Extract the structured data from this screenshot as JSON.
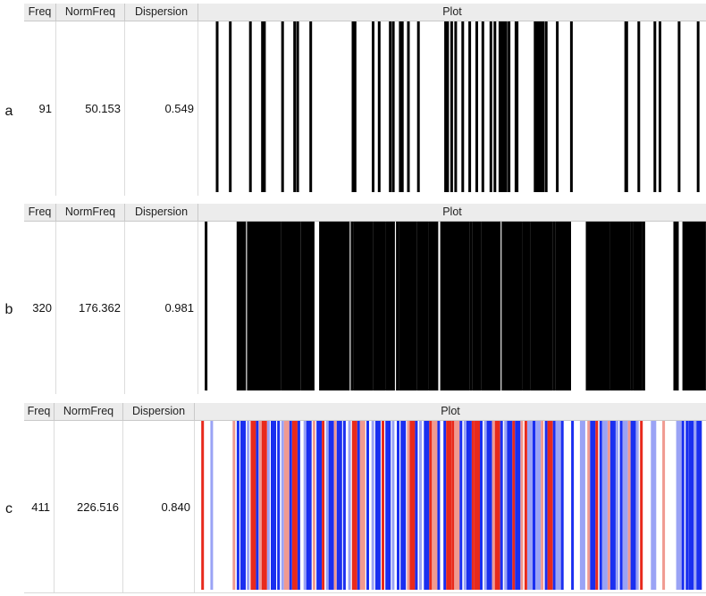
{
  "columns": {
    "freq": "Freq",
    "normfreq": "NormFreq",
    "dispersion": "Dispersion",
    "plot": "Plot"
  },
  "panels": [
    {
      "letter": "a",
      "freq": "91",
      "normfreq": "50.153",
      "dispersion": "0.549",
      "color_mode": "black",
      "bar_color": "#000000",
      "positions": [
        0.032,
        0.058,
        0.098,
        0.122,
        0.126,
        0.162,
        0.186,
        0.192,
        0.218,
        0.302,
        0.306,
        0.342,
        0.354,
        0.376,
        0.382,
        0.396,
        0.4,
        0.412,
        0.432,
        0.486,
        0.49,
        0.498,
        0.506,
        0.52,
        0.534,
        0.548,
        0.56,
        0.576,
        0.584,
        0.594,
        0.598,
        0.602,
        0.606,
        0.612,
        0.626,
        0.628,
        0.664,
        0.668,
        0.672,
        0.676,
        0.68,
        0.686,
        0.708,
        0.736,
        0.844,
        0.846,
        0.87,
        0.902,
        0.912,
        0.95,
        0.988
      ],
      "widths": [
        1,
        1,
        1,
        1,
        1,
        1,
        1,
        1,
        1,
        1,
        1,
        1,
        1,
        1,
        1,
        1,
        1,
        1,
        1,
        1,
        1,
        1,
        1,
        1,
        1,
        1,
        1,
        1,
        1,
        1,
        1,
        1,
        1,
        1,
        1,
        1,
        1,
        1,
        1,
        1,
        1,
        1,
        1,
        1,
        1,
        1,
        1,
        1,
        1,
        1,
        1
      ]
    },
    {
      "letter": "b",
      "freq": "320",
      "normfreq": "176.362",
      "dispersion": "0.981",
      "color_mode": "black",
      "bar_color": "#000000",
      "positions": [
        0.01,
        0.076,
        0.084,
        0.094,
        0.1,
        0.108,
        0.112,
        0.118,
        0.122,
        0.126,
        0.13,
        0.134,
        0.14,
        0.146,
        0.15,
        0.156,
        0.164,
        0.17,
        0.176,
        0.182,
        0.19,
        0.196,
        0.204,
        0.21,
        0.214,
        0.22,
        0.24,
        0.244,
        0.248,
        0.252,
        0.256,
        0.262,
        0.27,
        0.276,
        0.28,
        0.29,
        0.3,
        0.308,
        0.316,
        0.322,
        0.328,
        0.336,
        0.344,
        0.35,
        0.358,
        0.364,
        0.372,
        0.38,
        0.39,
        0.398,
        0.406,
        0.412,
        0.418,
        0.424,
        0.432,
        0.438,
        0.446,
        0.454,
        0.46,
        0.466,
        0.478,
        0.484,
        0.49,
        0.496,
        0.502,
        0.508,
        0.516,
        0.522,
        0.528,
        0.536,
        0.544,
        0.552,
        0.56,
        0.566,
        0.572,
        0.578,
        0.584,
        0.59,
        0.6,
        0.606,
        0.612,
        0.618,
        0.624,
        0.63,
        0.636,
        0.644,
        0.65,
        0.658,
        0.666,
        0.674,
        0.68,
        0.686,
        0.694,
        0.702,
        0.71,
        0.716,
        0.722,
        0.73,
        0.77,
        0.778,
        0.784,
        0.79,
        0.796,
        0.802,
        0.808,
        0.816,
        0.822,
        0.828,
        0.834,
        0.84,
        0.848,
        0.856,
        0.864,
        0.872,
        0.88,
        0.944,
        0.962,
        0.968,
        0.974,
        0.98,
        0.986,
        0.992,
        0.998
      ],
      "widths": [
        1,
        2,
        2,
        1,
        2,
        2,
        1,
        2,
        2,
        1,
        2,
        2,
        1,
        2,
        2,
        1,
        2,
        2,
        1,
        2,
        2,
        1,
        2,
        2,
        1,
        2,
        2,
        1,
        2,
        2,
        1,
        2,
        2,
        1,
        2,
        2,
        1,
        2,
        2,
        1,
        2,
        2,
        1,
        2,
        2,
        1,
        2,
        2,
        1,
        2,
        2,
        1,
        2,
        2,
        1,
        2,
        2,
        1,
        2,
        2,
        1,
        2,
        2,
        1,
        2,
        2,
        1,
        2,
        2,
        1,
        2,
        2,
        1,
        2,
        2,
        1,
        2,
        2,
        1,
        2,
        2,
        1,
        2,
        2,
        1,
        2,
        2,
        1,
        2,
        2,
        1,
        2,
        2,
        1,
        2,
        2,
        1,
        2,
        2,
        1,
        2,
        2,
        1,
        2,
        2,
        1,
        2,
        2,
        1,
        2,
        2,
        1,
        2,
        2,
        1,
        2,
        2,
        1,
        2,
        2,
        1,
        2,
        2
      ]
    },
    {
      "letter": "c",
      "freq": "411",
      "normfreq": "226.516",
      "dispersion": "0.840",
      "color_mode": "mixed",
      "bar_color": "",
      "palette": [
        "#1a2ff0",
        "#e82a1c",
        "#9aa3f5",
        "#f09a90"
      ],
      "positions": [
        0.01,
        0.028,
        0.072,
        0.08,
        0.09,
        0.1,
        0.11,
        0.118,
        0.124,
        0.132,
        0.14,
        0.15,
        0.16,
        0.168,
        0.176,
        0.184,
        0.192,
        0.2,
        0.212,
        0.22,
        0.23,
        0.24,
        0.248,
        0.256,
        0.264,
        0.272,
        0.28,
        0.29,
        0.3,
        0.31,
        0.318,
        0.326,
        0.336,
        0.346,
        0.356,
        0.366,
        0.376,
        0.386,
        0.396,
        0.406,
        0.416,
        0.424,
        0.432,
        0.44,
        0.452,
        0.46,
        0.468,
        0.476,
        0.488,
        0.496,
        0.504,
        0.512,
        0.52,
        0.528,
        0.536,
        0.544,
        0.552,
        0.56,
        0.568,
        0.576,
        0.584,
        0.592,
        0.6,
        0.608,
        0.616,
        0.624,
        0.632,
        0.64,
        0.648,
        0.656,
        0.664,
        0.672,
        0.68,
        0.688,
        0.696,
        0.704,
        0.712,
        0.72,
        0.74,
        0.76,
        0.772,
        0.78,
        0.788,
        0.796,
        0.804,
        0.812,
        0.82,
        0.828,
        0.836,
        0.844,
        0.852,
        0.86,
        0.868,
        0.876,
        0.9,
        0.92,
        0.95,
        0.958,
        0.966,
        0.974,
        0.982,
        0.99
      ],
      "widths": [
        1,
        1,
        1,
        1,
        2,
        1,
        2,
        1,
        1,
        2,
        1,
        2,
        1,
        1,
        2,
        1,
        2,
        1,
        1,
        2,
        1,
        2,
        1,
        1,
        2,
        1,
        2,
        1,
        1,
        2,
        1,
        2,
        1,
        1,
        2,
        1,
        2,
        1,
        1,
        2,
        1,
        2,
        1,
        1,
        2,
        1,
        2,
        1,
        1,
        2,
        1,
        2,
        1,
        1,
        2,
        1,
        2,
        1,
        1,
        2,
        1,
        2,
        1,
        1,
        2,
        1,
        2,
        1,
        1,
        2,
        1,
        2,
        1,
        1,
        2,
        1,
        2,
        1,
        1,
        2,
        1,
        2,
        1,
        1,
        2,
        1,
        2,
        1,
        1,
        2,
        1,
        2,
        1,
        1,
        2,
        1,
        2,
        1,
        1,
        2,
        1,
        2
      ],
      "colors": [
        1,
        2,
        3,
        0,
        0,
        2,
        1,
        0,
        3,
        1,
        2,
        0,
        0,
        2,
        3,
        0,
        1,
        0,
        2,
        0,
        3,
        0,
        1,
        2,
        0,
        3,
        0,
        0,
        2,
        1,
        0,
        3,
        0,
        2,
        0,
        1,
        0,
        2,
        0,
        0,
        3,
        1,
        0,
        2,
        0,
        1,
        3,
        0,
        0,
        1,
        1,
        3,
        0,
        2,
        0,
        1,
        1,
        0,
        2,
        0,
        3,
        1,
        0,
        2,
        0,
        1,
        0,
        3,
        1,
        2,
        0,
        2,
        3,
        0,
        1,
        0,
        2,
        0,
        0,
        2,
        3,
        0,
        1,
        0,
        2,
        3,
        0,
        2,
        0,
        2,
        3,
        0,
        2,
        1,
        2,
        3,
        2,
        0,
        0,
        0,
        2,
        0
      ]
    }
  ]
}
